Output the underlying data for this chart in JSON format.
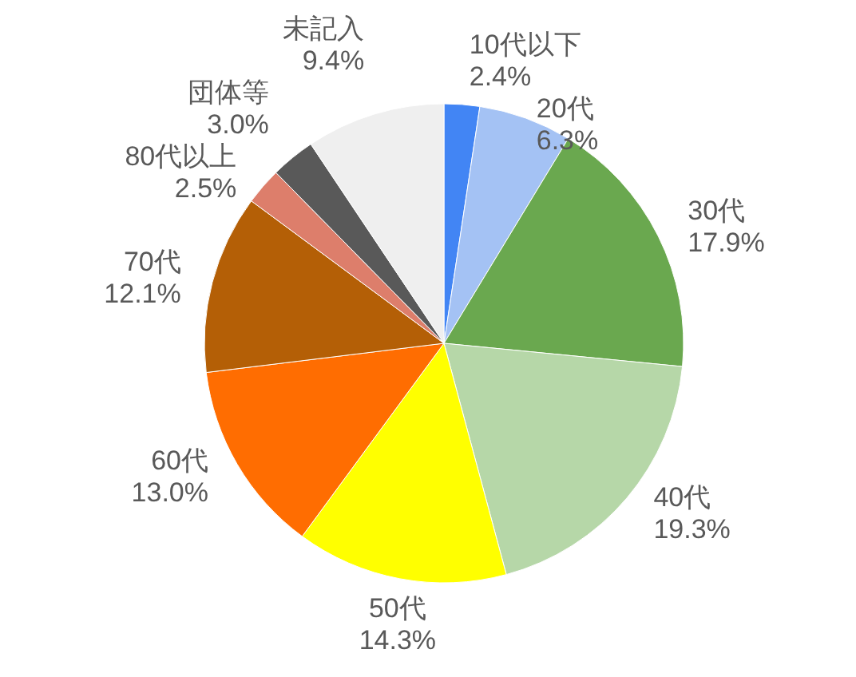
{
  "chart_data": {
    "type": "pie",
    "categories": [
      "10代以下",
      "20代",
      "30代",
      "40代",
      "50代",
      "60代",
      "70代",
      "80代以上",
      "団体等",
      "未記入"
    ],
    "values": [
      2.4,
      6.3,
      17.9,
      19.3,
      14.3,
      13.0,
      12.1,
      2.5,
      3.0,
      9.4
    ],
    "colors": [
      "#4285f4",
      "#a4c2f4",
      "#6aa84f",
      "#b6d7a8",
      "#ffff00",
      "#ff6d01",
      "#b45f06",
      "#dd7e6b",
      "#595959",
      "#efefef"
    ],
    "value_labels": [
      "2.4%",
      "6.3%",
      "17.9%",
      "19.3%",
      "14.3%",
      "13.0%",
      "12.1%",
      "2.5%",
      "3.0%",
      "9.4%"
    ],
    "legend": false
  }
}
